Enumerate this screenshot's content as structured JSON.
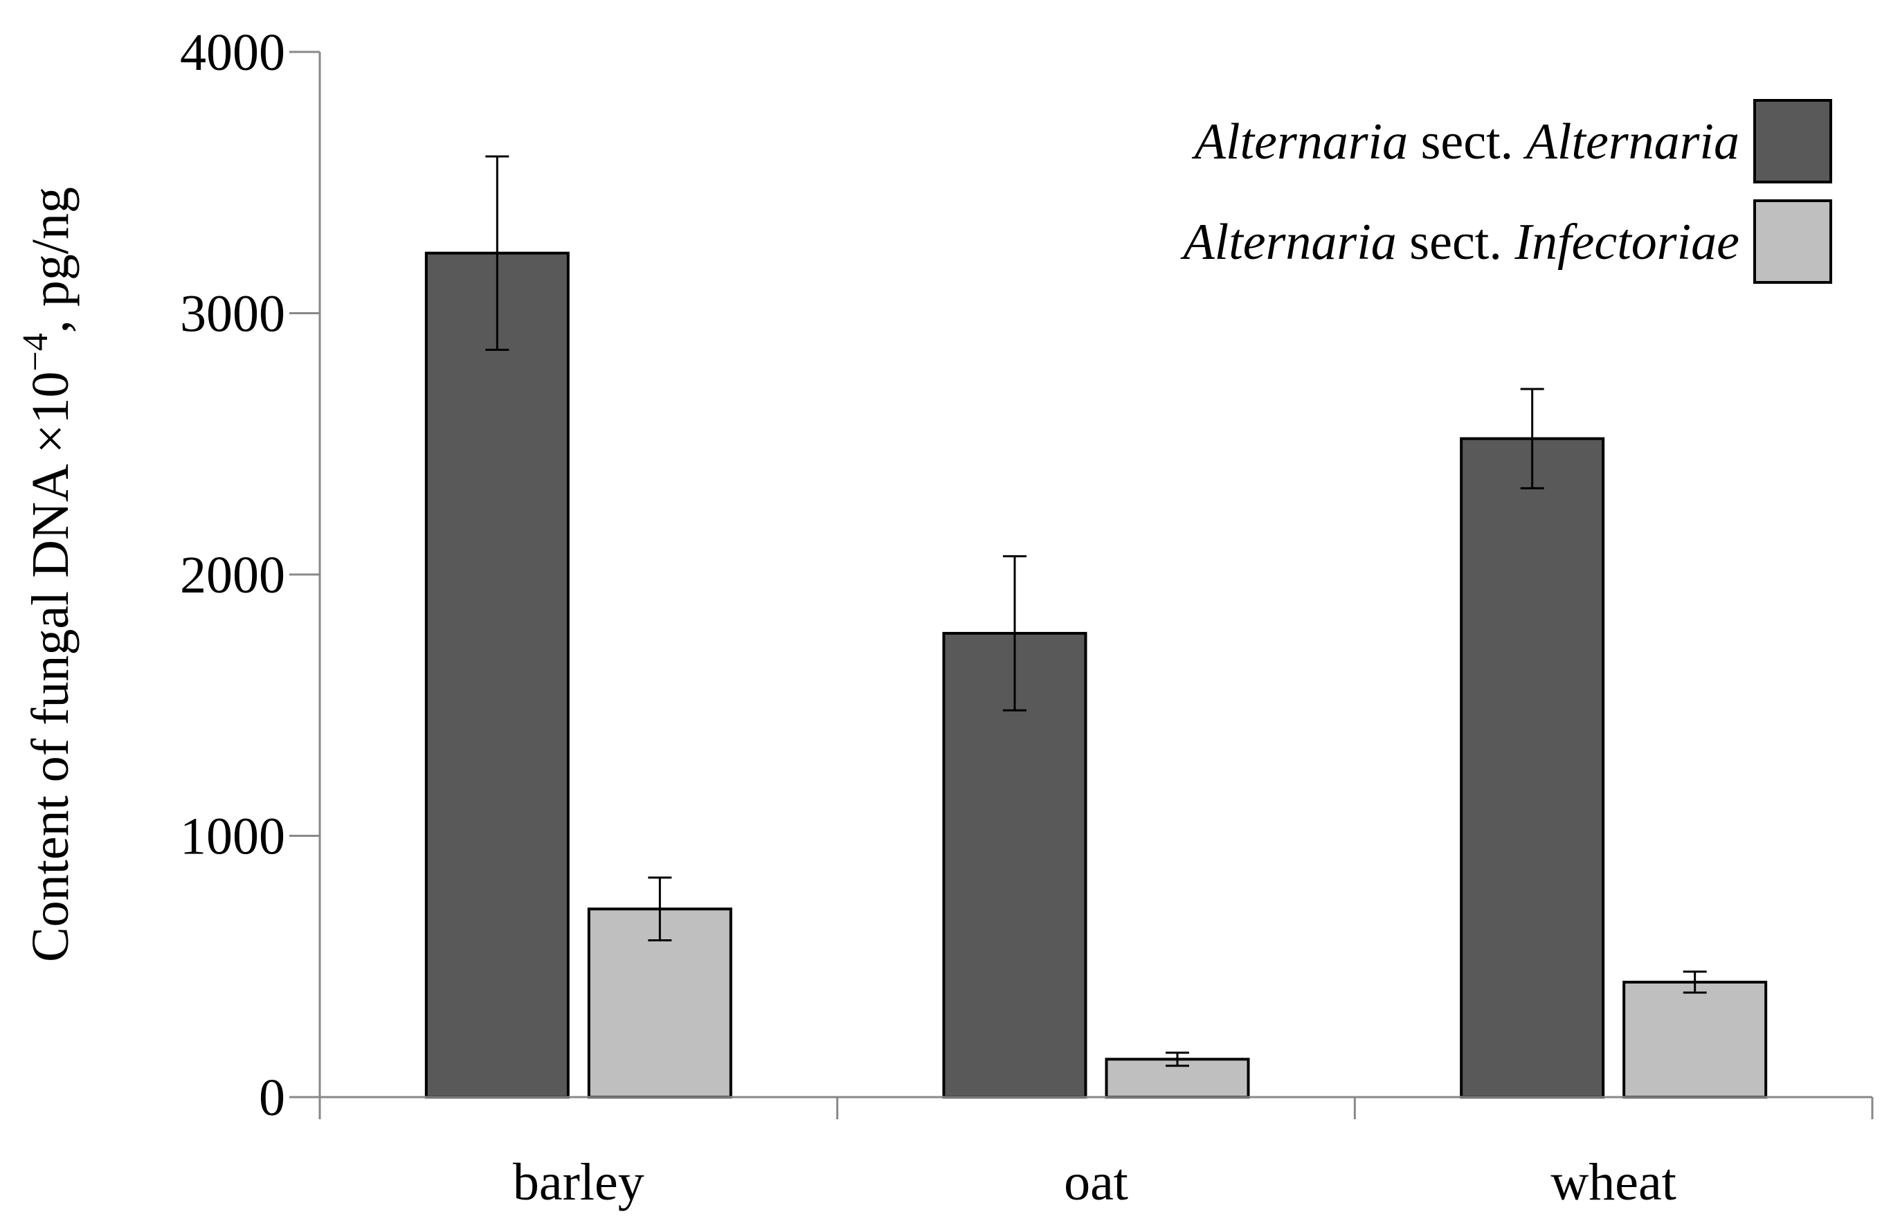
{
  "chart_data": {
    "type": "bar",
    "title": "",
    "xlabel": "",
    "ylabel": {
      "prefix": "Content of fungal DNA ×10",
      "exponent": "−4",
      "suffix": ", pg/ng"
    },
    "ylim": [
      0,
      4000
    ],
    "yticks": [
      0,
      1000,
      2000,
      3000,
      4000
    ],
    "categories": [
      "barley",
      "oat",
      "wheat"
    ],
    "series": [
      {
        "name": "Alternaria sect. Alternaria",
        "legend_parts": [
          {
            "text": "Alternaria",
            "italic": true
          },
          {
            "text": " sect. ",
            "italic": false
          },
          {
            "text": "Alternaria",
            "italic": true
          }
        ],
        "color": "#595959",
        "values": [
          3230,
          1775,
          2520
        ],
        "error": [
          370,
          295,
          190
        ]
      },
      {
        "name": "Alternaria sect. Infectoriae",
        "legend_parts": [
          {
            "text": "Alternaria",
            "italic": true
          },
          {
            "text": " sect. ",
            "italic": false
          },
          {
            "text": "Infectoriae",
            "italic": true
          }
        ],
        "color": "#bfbfbf",
        "values": [
          720,
          145,
          440
        ],
        "error": [
          120,
          25,
          40
        ]
      }
    ],
    "legend_position": "top-right",
    "grid": false
  }
}
